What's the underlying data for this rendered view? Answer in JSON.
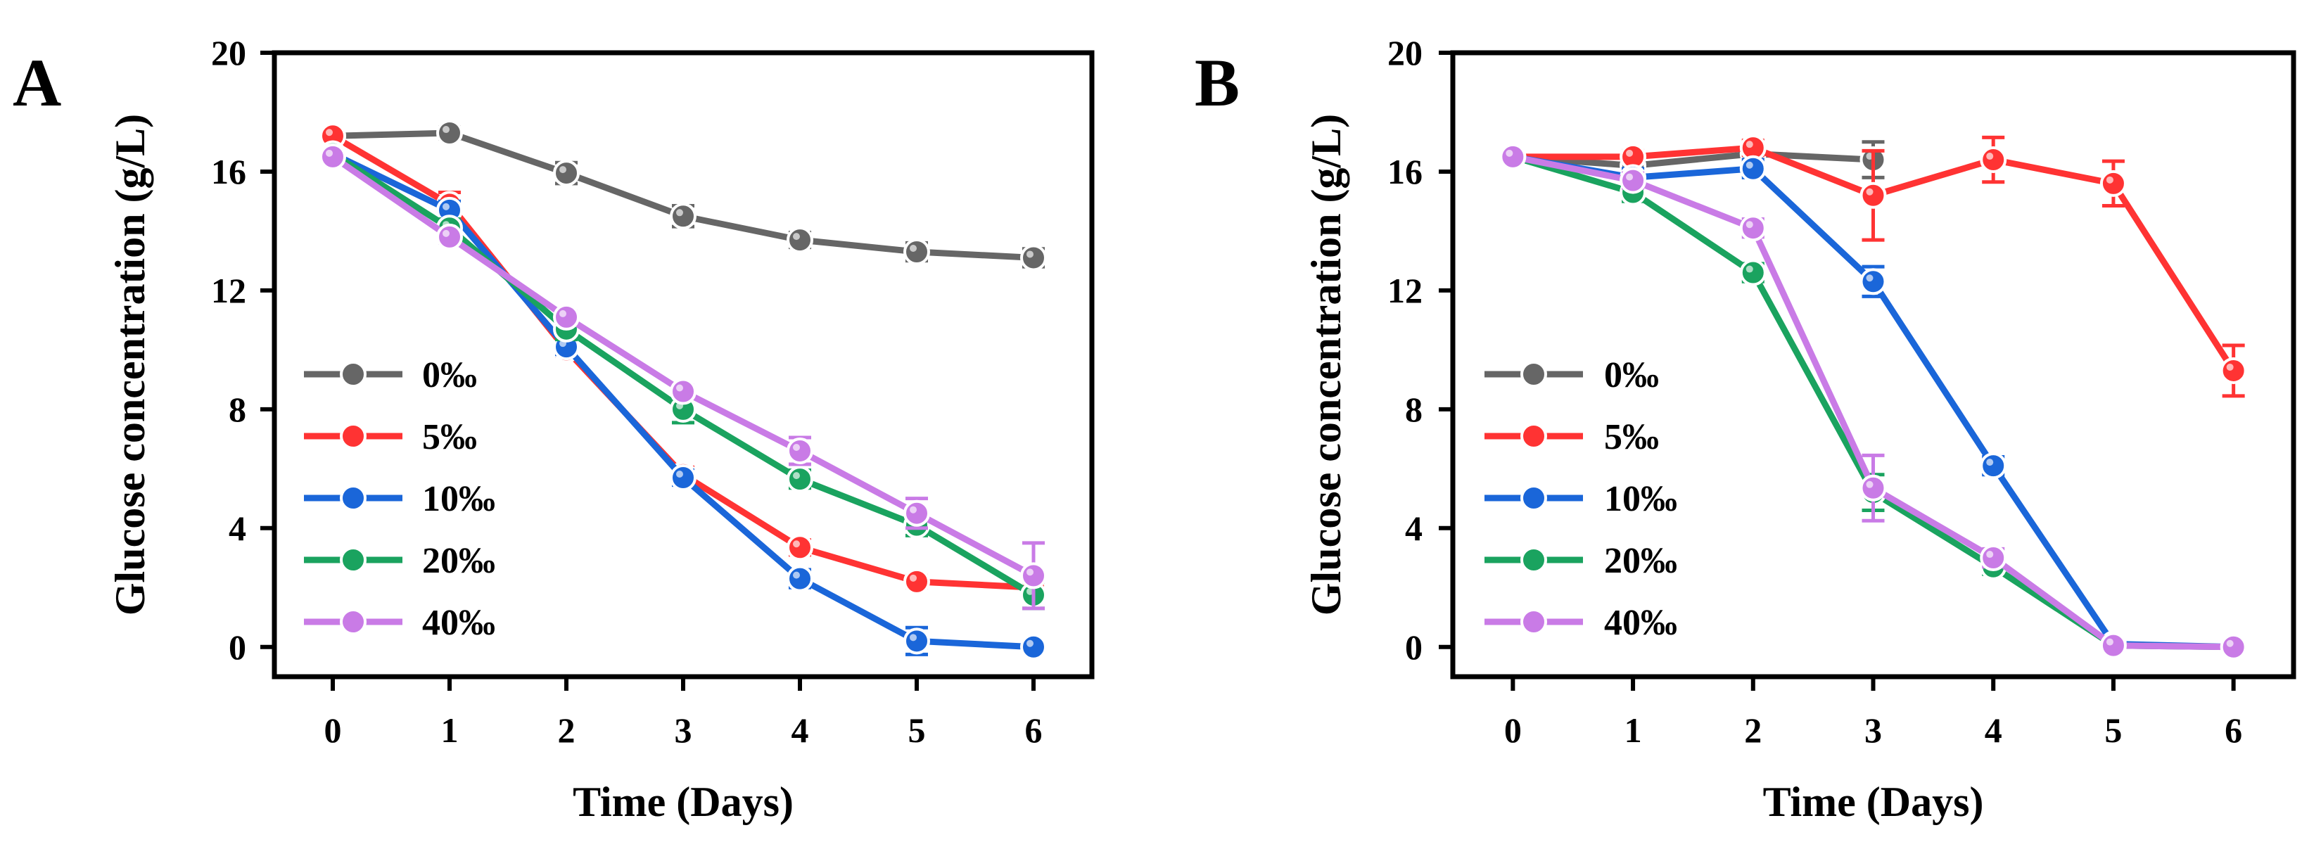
{
  "chart_data": [
    {
      "panel": "A",
      "type": "line",
      "xlabel": "Time (Days)",
      "ylabel": "Glucose  concentration (g/L)",
      "xlim": [
        -0.5,
        6.5
      ],
      "ylim": [
        -1,
        20
      ],
      "xticks": [
        0,
        1,
        2,
        3,
        4,
        5,
        6
      ],
      "yticks": [
        0,
        4,
        8,
        12,
        16,
        20
      ],
      "legend_position": "lower-left",
      "series": [
        {
          "name": "0‰",
          "color": "#666666",
          "x": [
            0,
            1,
            2,
            3,
            4,
            5,
            6
          ],
          "values": [
            17.2,
            17.3,
            15.95,
            14.5,
            13.7,
            13.3,
            13.1
          ],
          "errors": [
            0.15,
            0.2,
            0.35,
            0.35,
            0.25,
            0.3,
            0.3
          ]
        },
        {
          "name": "5‰",
          "color": "#ff3333",
          "x": [
            0,
            1,
            2,
            3,
            4,
            5,
            6
          ],
          "values": [
            17.2,
            14.9,
            10.0,
            5.8,
            3.35,
            2.2,
            2.0
          ],
          "errors": [
            0.15,
            0.4,
            0.2,
            0.25,
            0.25,
            0.2,
            0.2
          ]
        },
        {
          "name": "10‰",
          "color": "#1a66d9",
          "x": [
            0,
            1,
            2,
            3,
            4,
            5,
            6
          ],
          "values": [
            16.6,
            14.7,
            10.1,
            5.7,
            2.3,
            0.2,
            0.0
          ],
          "errors": [
            0.15,
            0.3,
            0.25,
            0.25,
            0.3,
            0.45,
            0.1
          ]
        },
        {
          "name": "20‰",
          "color": "#1aa35f",
          "x": [
            0,
            1,
            2,
            3,
            4,
            5,
            6
          ],
          "values": [
            16.6,
            14.1,
            10.7,
            8.0,
            5.65,
            4.1,
            1.75
          ],
          "errors": [
            0.15,
            0.3,
            0.35,
            0.45,
            0.3,
            0.35,
            0.45
          ]
        },
        {
          "name": "40‰",
          "color": "#c97be6",
          "x": [
            0,
            1,
            2,
            3,
            4,
            5,
            6
          ],
          "values": [
            16.5,
            13.8,
            11.1,
            8.6,
            6.6,
            4.5,
            2.4
          ],
          "errors": [
            0.15,
            0.2,
            0.2,
            0.2,
            0.45,
            0.5,
            1.1
          ]
        }
      ]
    },
    {
      "panel": "B",
      "type": "line",
      "xlabel": "Time (Days)",
      "ylabel": "Glucose concentration (g/L)",
      "xlim": [
        -0.5,
        6.5
      ],
      "ylim": [
        -1,
        20
      ],
      "xticks": [
        0,
        1,
        2,
        3,
        4,
        5,
        6
      ],
      "yticks": [
        0,
        4,
        8,
        12,
        16,
        20
      ],
      "legend_position": "lower-left",
      "series": [
        {
          "name": "0‰",
          "color": "#666666",
          "x": [
            0,
            1,
            2,
            3
          ],
          "values": [
            16.5,
            16.2,
            16.6,
            16.4
          ],
          "errors": [
            0.15,
            0.2,
            0.2,
            0.6
          ]
        },
        {
          "name": "5‰",
          "color": "#ff3333",
          "x": [
            0,
            1,
            2,
            3,
            4,
            5,
            6
          ],
          "values": [
            16.5,
            16.5,
            16.8,
            15.2,
            16.4,
            15.6,
            9.3
          ],
          "errors": [
            0.15,
            0.2,
            0.25,
            1.5,
            0.75,
            0.75,
            0.85
          ]
        },
        {
          "name": "10‰",
          "color": "#1a66d9",
          "x": [
            0,
            1,
            2,
            3,
            4,
            5,
            6
          ],
          "values": [
            16.5,
            15.8,
            16.1,
            12.3,
            6.1,
            0.1,
            0.0
          ],
          "errors": [
            0.15,
            0.3,
            0.3,
            0.5,
            0.3,
            0.1,
            0.1
          ]
        },
        {
          "name": "20‰",
          "color": "#1aa35f",
          "x": [
            0,
            1,
            2,
            3,
            4,
            5,
            6
          ],
          "values": [
            16.5,
            15.3,
            12.6,
            5.2,
            2.7,
            0.05,
            0.0
          ],
          "errors": [
            0.15,
            0.3,
            0.3,
            0.6,
            0.25,
            0.1,
            0.1
          ]
        },
        {
          "name": "40‰",
          "color": "#c97be6",
          "x": [
            0,
            1,
            2,
            3,
            4,
            5,
            6
          ],
          "values": [
            16.5,
            15.7,
            14.1,
            5.35,
            3.0,
            0.05,
            0.0
          ],
          "errors": [
            0.15,
            0.25,
            0.3,
            1.1,
            0.3,
            0.1,
            0.1
          ]
        }
      ]
    }
  ]
}
